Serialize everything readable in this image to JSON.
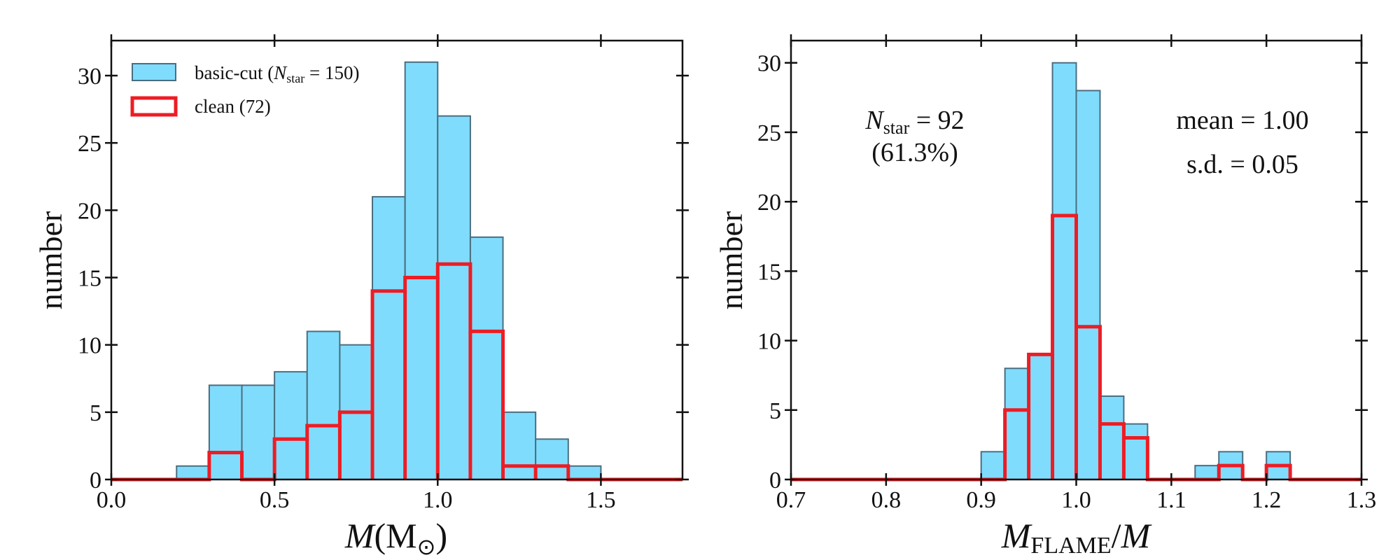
{
  "chart_data": [
    {
      "type": "bar",
      "panel": "left",
      "xlabel_symbol": "M",
      "xlabel_unit": "(M",
      "xlabel_sun": "⊙",
      "xlabel_close": ")",
      "ylabel": "number",
      "xlim": [
        0.0,
        1.75
      ],
      "ylim": [
        0,
        32.6
      ],
      "xticks": [
        "0.0",
        "0.5",
        "1.0",
        "1.5"
      ],
      "xtick_values": [
        0.0,
        0.5,
        1.0,
        1.5
      ],
      "yticks": [
        "0",
        "5",
        "10",
        "15",
        "20",
        "25",
        "30"
      ],
      "ytick_values": [
        0,
        5,
        10,
        15,
        20,
        25,
        30
      ],
      "bin_width": 0.1,
      "bin_edges": [
        0.0,
        0.1,
        0.2,
        0.3,
        0.4,
        0.5,
        0.6,
        0.7,
        0.8,
        0.9,
        1.0,
        1.1,
        1.2,
        1.3,
        1.4,
        1.5,
        1.6,
        1.7
      ],
      "series": [
        {
          "name": "basic-cut",
          "values": [
            0,
            0,
            1,
            7,
            7,
            8,
            11,
            10,
            21,
            31,
            27,
            18,
            5,
            3,
            1,
            0,
            0
          ]
        },
        {
          "name": "clean",
          "values": [
            0,
            0,
            0,
            2,
            0,
            3,
            4,
            5,
            14,
            15,
            16,
            11,
            1,
            1,
            0,
            0,
            0
          ]
        }
      ],
      "legend": {
        "placement": "top-left",
        "basic_prefix": "basic-cut (",
        "basic_n": "N",
        "basic_sub": "star",
        "basic_suffix": " = 150)",
        "clean_label": "clean (72)"
      }
    },
    {
      "type": "bar",
      "panel": "right",
      "xlabel_symbol": "M",
      "xlabel_sub": "FLAME",
      "xlabel_rest": "/",
      "xlabel_symbol2": "M",
      "ylabel": "number",
      "xlim": [
        0.7,
        1.3
      ],
      "ylim": [
        0,
        31.6
      ],
      "xticks": [
        "0.7",
        "0.8",
        "0.9",
        "1.0",
        "1.1",
        "1.2",
        "1.3"
      ],
      "xtick_values": [
        0.7,
        0.8,
        0.9,
        1.0,
        1.1,
        1.2,
        1.3
      ],
      "yticks": [
        "0",
        "5",
        "10",
        "15",
        "20",
        "25",
        "30"
      ],
      "ytick_values": [
        0,
        5,
        10,
        15,
        20,
        25,
        30
      ],
      "bin_width": 0.025,
      "bin_edges": [
        0.7,
        0.725,
        0.75,
        0.775,
        0.8,
        0.825,
        0.85,
        0.875,
        0.9,
        0.925,
        0.95,
        0.975,
        1.0,
        1.025,
        1.05,
        1.075,
        1.1,
        1.125,
        1.15,
        1.175,
        1.2,
        1.225,
        1.25,
        1.275,
        1.3
      ],
      "series": [
        {
          "name": "basic-cut",
          "values": [
            0,
            0,
            0,
            0,
            0,
            0,
            0,
            0,
            2,
            8,
            9,
            30,
            28,
            6,
            4,
            0,
            0,
            1,
            2,
            0,
            2,
            0,
            0,
            0
          ]
        },
        {
          "name": "clean",
          "values": [
            0,
            0,
            0,
            0,
            0,
            0,
            0,
            0,
            0,
            5,
            9,
            19,
            11,
            4,
            3,
            0,
            0,
            0,
            1,
            0,
            1,
            0,
            0,
            0
          ]
        }
      ],
      "annotations": {
        "nstar_symbol": "N",
        "nstar_sub": "star",
        "nstar_value": " = 92",
        "nstar_percent": "(61.3%)",
        "mean": "mean = 1.00",
        "sd": "s.d. = 0.05"
      }
    }
  ],
  "colors": {
    "basic_fill": "#80dcfc",
    "basic_edge": "#4a6e80",
    "clean_edge": "#ee1c24",
    "axis": "#111111"
  }
}
